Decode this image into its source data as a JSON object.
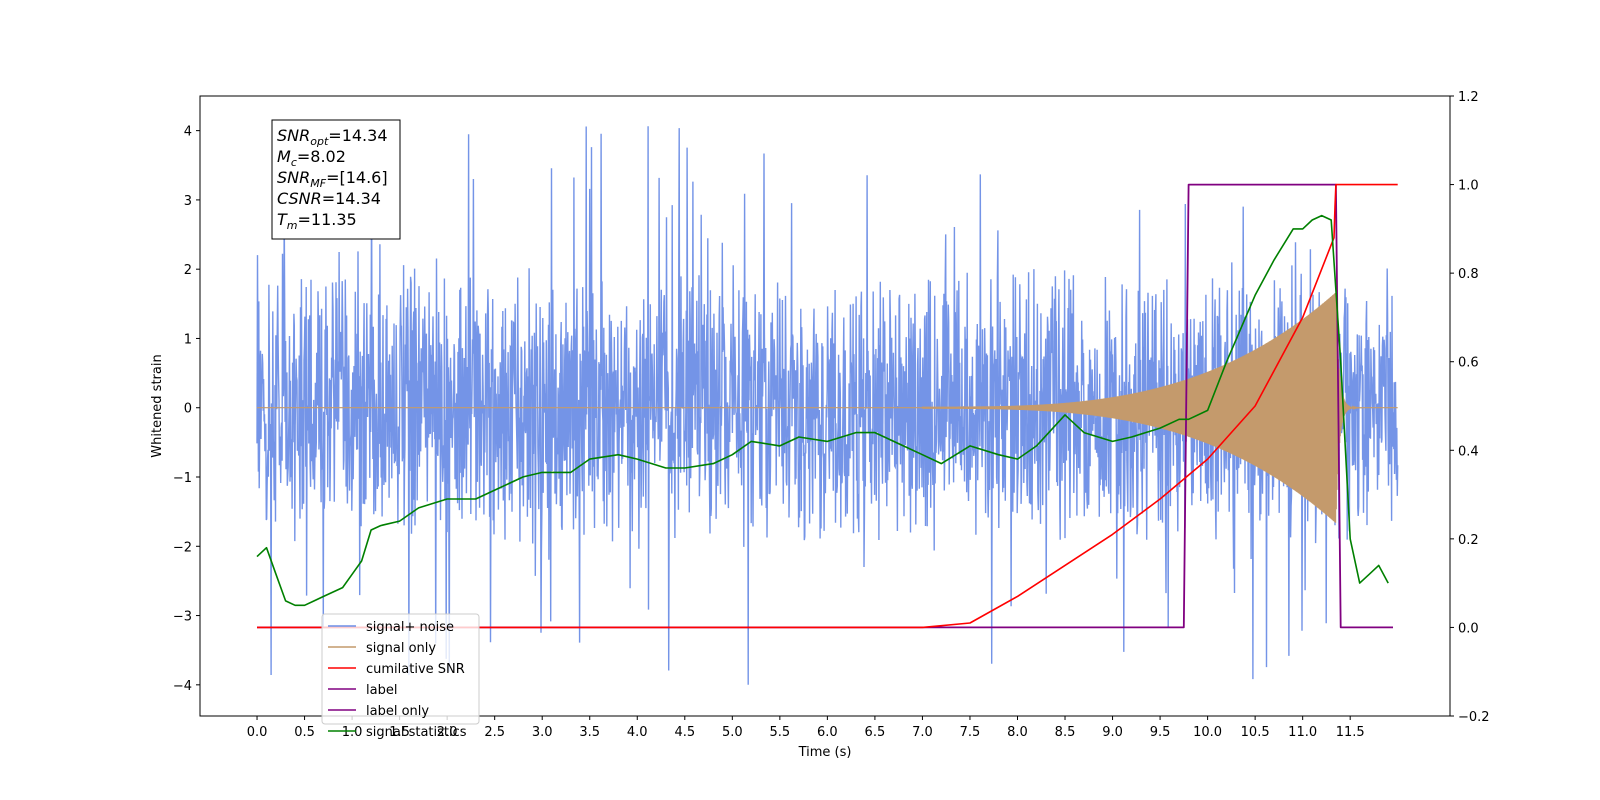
{
  "chart_data": {
    "type": "line",
    "xlabel": "Time (s)",
    "ylabel": "Whitened strain",
    "xlim": [
      -0.6,
      12.55
    ],
    "ylim": [
      -4.45,
      4.5
    ],
    "y2lim": [
      -0.2,
      1.2
    ],
    "x_ticks": [
      "0.0",
      "0.5",
      "1.0",
      "1.5",
      "2.0",
      "2.5",
      "3.0",
      "3.5",
      "4.0",
      "4.5",
      "5.0",
      "5.5",
      "6.0",
      "6.5",
      "7.0",
      "7.5",
      "8.0",
      "8.5",
      "9.0",
      "9.5",
      "10.0",
      "10.5",
      "11.0",
      "11.5"
    ],
    "y_ticks": [
      "4",
      "3",
      "2",
      "1",
      "0",
      "−1",
      "−2",
      "−3",
      "−4"
    ],
    "y2_ticks": [
      "1.2",
      "1.0",
      "0.8",
      "0.6",
      "0.4",
      "0.2",
      "0.0",
      "−0.2"
    ],
    "annotation": {
      "lines": [
        {
          "base": "SNR",
          "sub": "opt",
          "value": "=14.34"
        },
        {
          "base": "M",
          "sub": "c",
          "value": "=8.02"
        },
        {
          "base": "SNR",
          "sub": "MF",
          "value": "=[14.6]"
        },
        {
          "base": "CSNR",
          "sub": "",
          "value": "=14.34"
        },
        {
          "base": "T",
          "sub": "m",
          "value": "=11.35"
        }
      ]
    },
    "legend_position": "lower-left",
    "series": [
      {
        "name": "signal+ noise",
        "axis": "left",
        "color": "#6d8ee6",
        "noise_band": [
          -2.0,
          2.3
        ],
        "extreme_range": [
          -4.0,
          4.1
        ],
        "t_range": [
          0.0,
          12.0
        ]
      },
      {
        "name": "signal only",
        "axis": "left",
        "color": "#c49a6c",
        "chirp_start": 7.0,
        "merger": 11.35,
        "peak_amplitude": 1.65,
        "t_range": [
          0.0,
          12.0
        ]
      },
      {
        "name": "cumilative SNR",
        "axis": "right",
        "color": "#ff0000",
        "x": [
          0.0,
          6.5,
          7.0,
          7.5,
          8.0,
          8.5,
          9.0,
          9.5,
          10.0,
          10.5,
          11.0,
          11.33,
          11.34,
          11.35,
          12.0
        ],
        "y": [
          0.0,
          0.0,
          0.0,
          0.01,
          0.07,
          0.14,
          0.21,
          0.29,
          0.38,
          0.5,
          0.7,
          0.88,
          0.95,
          1.0,
          1.0
        ]
      },
      {
        "name": "label",
        "axis": "right",
        "color": "#800080",
        "x": [
          0.0,
          9.75,
          9.8,
          11.35,
          11.4,
          11.95
        ],
        "y": [
          0.0,
          0.0,
          1.0,
          1.0,
          0.0,
          0.0
        ]
      },
      {
        "name": "label only",
        "axis": "right",
        "color": "#800080",
        "x": [],
        "y": []
      },
      {
        "name": "signal statistics",
        "axis": "right",
        "color": "#008000",
        "x": [
          0.0,
          0.1,
          0.2,
          0.3,
          0.4,
          0.5,
          0.6,
          0.7,
          0.8,
          0.9,
          1.0,
          1.1,
          1.2,
          1.3,
          1.5,
          1.7,
          2.0,
          2.3,
          2.5,
          2.8,
          3.0,
          3.3,
          3.5,
          3.8,
          4.0,
          4.3,
          4.5,
          4.8,
          5.0,
          5.2,
          5.5,
          5.7,
          6.0,
          6.3,
          6.5,
          6.8,
          7.0,
          7.2,
          7.5,
          7.8,
          8.0,
          8.2,
          8.5,
          8.7,
          9.0,
          9.2,
          9.5,
          9.7,
          9.8,
          10.0,
          10.2,
          10.4,
          10.5,
          10.7,
          10.9,
          11.0,
          11.1,
          11.2,
          11.3,
          11.4,
          11.5,
          11.6,
          11.7,
          11.8,
          11.9
        ],
        "y": [
          0.16,
          0.18,
          0.12,
          0.06,
          0.05,
          0.05,
          0.06,
          0.07,
          0.08,
          0.09,
          0.12,
          0.15,
          0.22,
          0.23,
          0.24,
          0.27,
          0.29,
          0.29,
          0.31,
          0.34,
          0.35,
          0.35,
          0.38,
          0.39,
          0.38,
          0.36,
          0.36,
          0.37,
          0.39,
          0.42,
          0.41,
          0.43,
          0.42,
          0.44,
          0.44,
          0.41,
          0.39,
          0.37,
          0.41,
          0.39,
          0.38,
          0.41,
          0.48,
          0.44,
          0.42,
          0.43,
          0.45,
          0.47,
          0.47,
          0.49,
          0.6,
          0.7,
          0.75,
          0.83,
          0.9,
          0.9,
          0.92,
          0.93,
          0.92,
          0.6,
          0.2,
          0.1,
          0.12,
          0.14,
          0.1
        ]
      }
    ]
  }
}
